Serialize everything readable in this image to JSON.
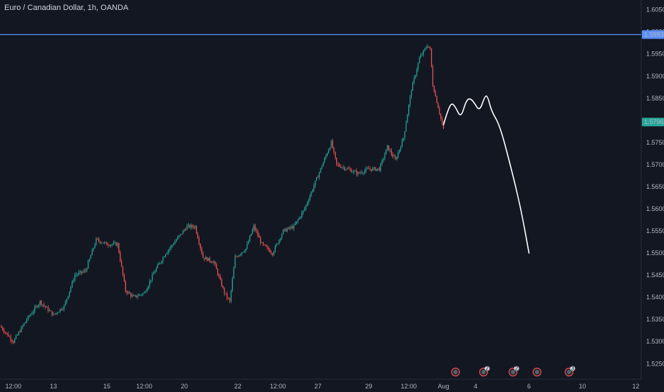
{
  "colors": {
    "background": "#131722",
    "up": "#26a69a",
    "down": "#ef5350",
    "level_line": "#5b8ff9",
    "projection": "#ffffff",
    "grid": "#1e222d",
    "axis_text": "#b2b5be"
  },
  "chart_data": {
    "type": "candlestick",
    "title": "Euro / Canadian Dollar, 1h, OANDA",
    "x_ticks": [
      "12:00",
      "13",
      "15",
      "12:00",
      "20",
      "22",
      "12:00",
      "27",
      "29",
      "12:00",
      "Aug",
      "4",
      "6",
      "10",
      "12"
    ],
    "y_ticks": [
      "1.60500",
      "1.60000",
      "1.59500",
      "1.59000",
      "1.58500",
      "1.58000",
      "1.57500",
      "1.57000",
      "1.56500",
      "1.56000",
      "1.55500",
      "1.55000",
      "1.54500",
      "1.54000",
      "1.53500",
      "1.53000",
      "1.52500"
    ],
    "ylim": [
      1.5215,
      1.6072
    ],
    "xlim": [
      0,
      240
    ],
    "x_tick_positions": [
      5,
      20,
      40,
      54,
      69,
      89,
      104,
      119,
      138,
      153,
      166,
      178,
      198,
      218,
      238
    ],
    "price_path": [
      [
        0,
        1.5335
      ],
      [
        5,
        1.53
      ],
      [
        10,
        1.535
      ],
      [
        15,
        1.539
      ],
      [
        20,
        1.536
      ],
      [
        24,
        1.538
      ],
      [
        28,
        1.545
      ],
      [
        32,
        1.546
      ],
      [
        36,
        1.553
      ],
      [
        40,
        1.552
      ],
      [
        44,
        1.552
      ],
      [
        47,
        1.5415
      ],
      [
        50,
        1.54
      ],
      [
        54,
        1.541
      ],
      [
        58,
        1.546
      ],
      [
        62,
        1.55
      ],
      [
        66,
        1.553
      ],
      [
        70,
        1.556
      ],
      [
        73,
        1.556
      ],
      [
        76,
        1.549
      ],
      [
        80,
        1.548
      ],
      [
        84,
        1.541
      ],
      [
        86,
        1.539
      ],
      [
        88,
        1.549
      ],
      [
        92,
        1.551
      ],
      [
        95,
        1.556
      ],
      [
        98,
        1.552
      ],
      [
        102,
        1.55
      ],
      [
        106,
        1.555
      ],
      [
        110,
        1.556
      ],
      [
        114,
        1.56
      ],
      [
        118,
        1.566
      ],
      [
        122,
        1.572
      ],
      [
        124,
        1.575
      ],
      [
        126,
        1.57
      ],
      [
        130,
        1.569
      ],
      [
        134,
        1.568
      ],
      [
        138,
        1.569
      ],
      [
        142,
        1.569
      ],
      [
        145,
        1.574
      ],
      [
        148,
        1.571
      ],
      [
        151,
        1.576
      ],
      [
        154,
        1.587
      ],
      [
        157,
        1.594
      ],
      [
        160,
        1.597
      ],
      [
        161,
        1.596
      ],
      [
        162,
        1.588
      ],
      [
        164,
        1.583
      ],
      [
        166,
        1.5779
      ]
    ],
    "horizontal_line": {
      "value": 1.59939,
      "label": "1.59939"
    },
    "last_price": {
      "value": 1.57962,
      "label": "1.57962"
    },
    "projection_path": [
      [
        166,
        1.579
      ],
      [
        167.5,
        1.582
      ],
      [
        169,
        1.584
      ],
      [
        170.5,
        1.583
      ],
      [
        172.5,
        1.5805
      ],
      [
        174.5,
        1.5845
      ],
      [
        176,
        1.585
      ],
      [
        177.5,
        1.584
      ],
      [
        179.5,
        1.582
      ],
      [
        181.5,
        1.5855
      ],
      [
        182.5,
        1.5855
      ],
      [
        184,
        1.582
      ],
      [
        187,
        1.579
      ],
      [
        191,
        1.57
      ],
      [
        195,
        1.56
      ],
      [
        198,
        1.55
      ]
    ],
    "event_badges": [
      {
        "x": 170.5,
        "label": ""
      },
      {
        "x": 181,
        "label": "2"
      },
      {
        "x": 192,
        "label": "2"
      },
      {
        "x": 201,
        "label": ""
      },
      {
        "x": 213,
        "label": "3"
      }
    ]
  }
}
